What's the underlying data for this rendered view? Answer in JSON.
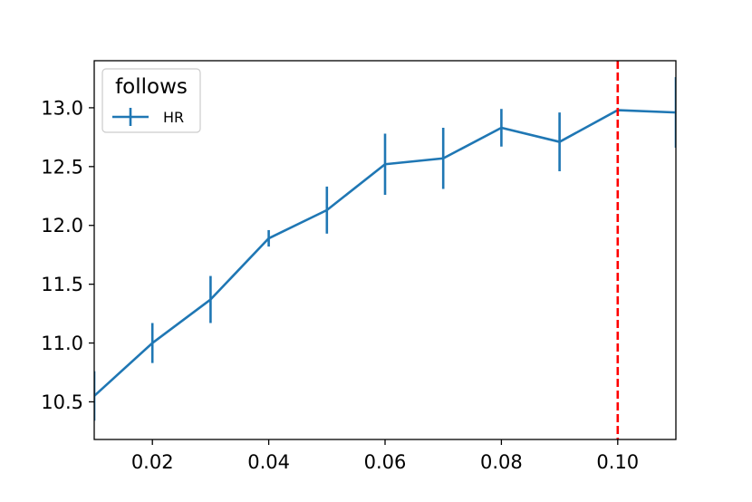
{
  "chart_data": {
    "type": "line",
    "x": [
      0.01,
      0.02,
      0.03,
      0.04,
      0.05,
      0.06,
      0.07,
      0.08,
      0.09,
      0.1,
      0.11
    ],
    "series": [
      {
        "name": "HR",
        "color": "#1f77b4",
        "values": [
          10.55,
          11.0,
          11.37,
          11.89,
          12.13,
          12.52,
          12.57,
          12.83,
          12.71,
          12.98,
          12.96
        ],
        "errors": [
          0.21,
          0.17,
          0.2,
          0.07,
          0.2,
          0.26,
          0.26,
          0.16,
          0.25,
          0.0,
          0.3
        ]
      }
    ],
    "vline": {
      "x": 0.1,
      "color": "#ff0000",
      "style": "dashed"
    },
    "xlim": [
      0.01,
      0.11
    ],
    "ylim": [
      10.18,
      13.4
    ],
    "xticks": [
      "0.02",
      "0.04",
      "0.06",
      "0.08",
      "0.10"
    ],
    "yticks": [
      "10.5",
      "11.0",
      "11.5",
      "12.0",
      "12.5",
      "13.0"
    ],
    "legend": {
      "title": "follows",
      "position": "top-left"
    },
    "title": "",
    "xlabel": "",
    "ylabel": "",
    "grid": false
  }
}
